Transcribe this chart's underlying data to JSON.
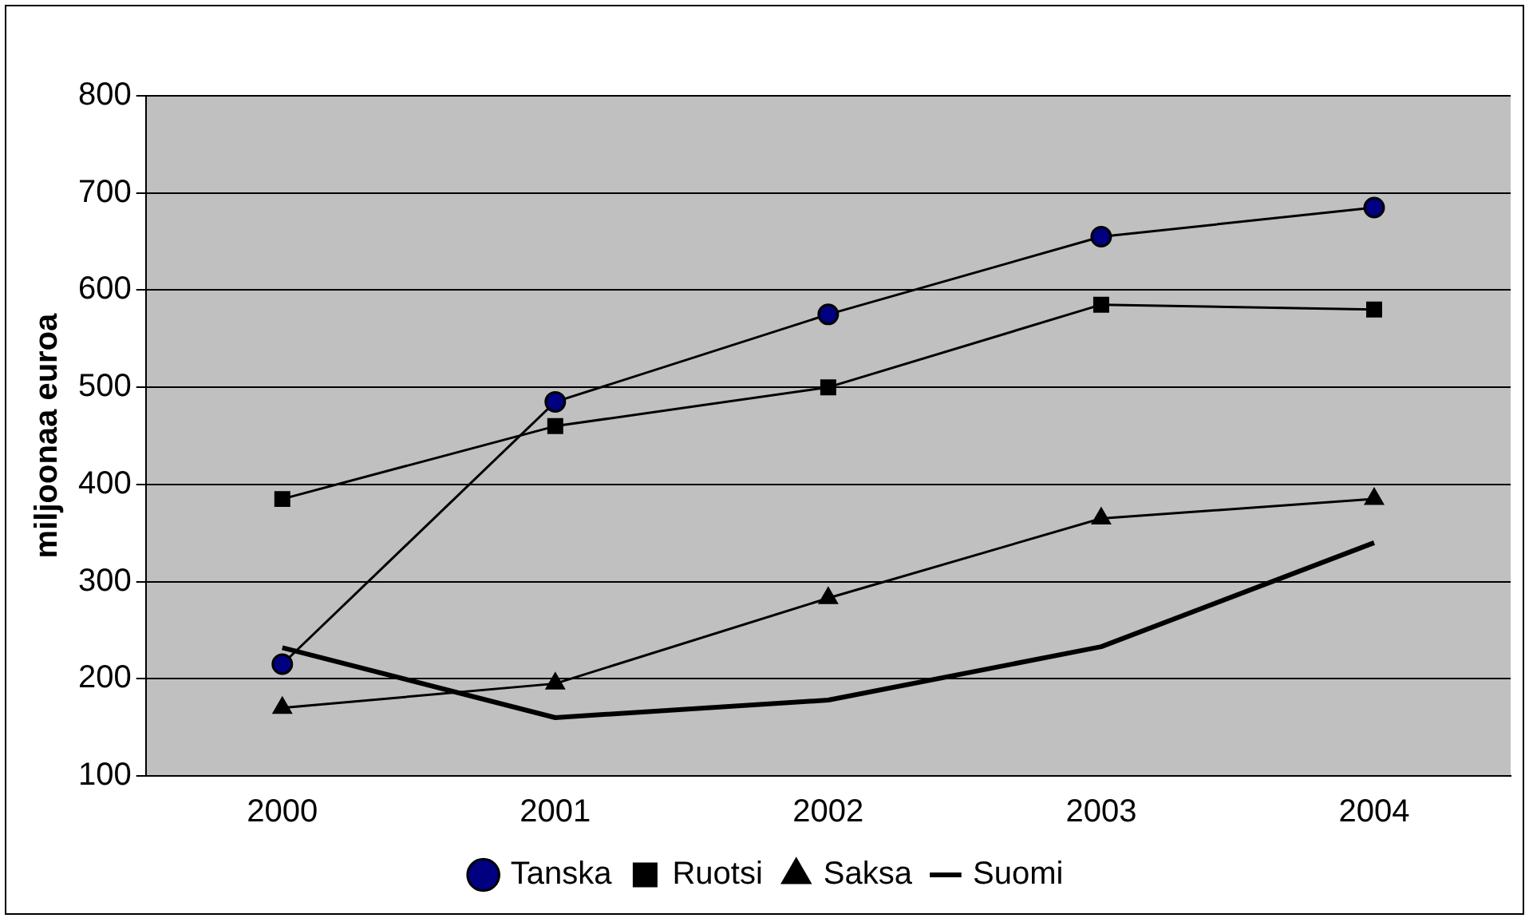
{
  "chart_data": {
    "type": "line",
    "ylabel": "miljoonaa euroa",
    "categories": [
      "2000",
      "2001",
      "2002",
      "2003",
      "2004"
    ],
    "series": [
      {
        "name": "Tanska",
        "color": "#000080",
        "marker": "circle",
        "values": [
          215,
          485,
          575,
          655,
          685
        ]
      },
      {
        "name": "Ruotsi",
        "color": "#000000",
        "marker": "square",
        "values": [
          385,
          460,
          500,
          585,
          580
        ]
      },
      {
        "name": "Saksa",
        "color": "#000000",
        "marker": "triangle",
        "values": [
          170,
          195,
          283,
          365,
          385
        ]
      },
      {
        "name": "Suomi",
        "color": "#000000",
        "marker": "none",
        "values": [
          232,
          160,
          178,
          233,
          340
        ]
      }
    ],
    "ylim": [
      100,
      800
    ],
    "yticks": [
      100,
      200,
      300,
      400,
      500,
      600,
      700,
      800
    ],
    "grid": "y",
    "legend": "bottom"
  }
}
